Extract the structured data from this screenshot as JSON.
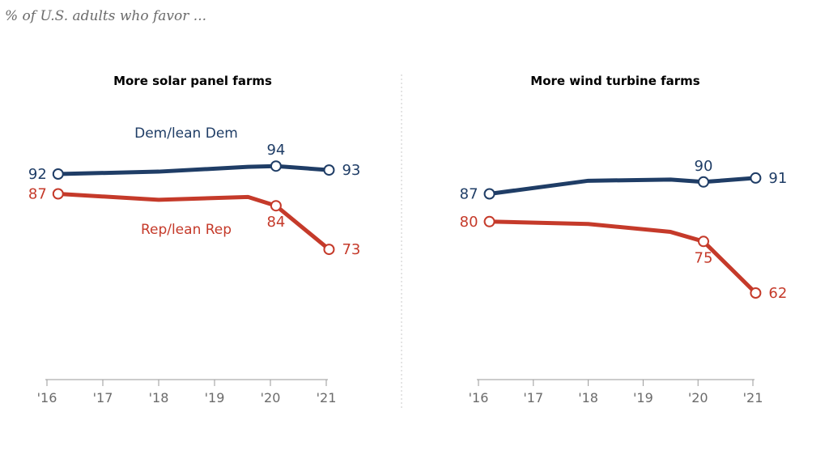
{
  "subtitle": "% of U.S. adults who favor ...",
  "colors": {
    "dem": "#1f3d66",
    "rep": "#c53a2a",
    "axis": "#9a9a9a",
    "divider": "#c8c8c8"
  },
  "chart_data": [
    {
      "type": "line",
      "title": "More solar panel farms",
      "x_ticks": [
        "'16",
        "'17",
        "'18",
        "'19",
        "'20",
        "'21"
      ],
      "xlim": [
        2016,
        2021
      ],
      "ylim": [
        0,
        100
      ],
      "series": [
        {
          "name": "Dem/lean Dem",
          "key": "dem",
          "x": [
            2016.2,
            2018,
            2019.6,
            2020.1,
            2021.05
          ],
          "values": [
            92,
            92.6,
            93.8,
            94,
            93
          ],
          "labeled": [
            0,
            3,
            4
          ],
          "labels": [
            "92",
            "94",
            "93"
          ],
          "label_pos": [
            "left",
            "above",
            "right"
          ]
        },
        {
          "name": "Rep/lean Rep",
          "key": "rep",
          "x": [
            2016.2,
            2018,
            2019.6,
            2020.1,
            2021.05
          ],
          "values": [
            87,
            85.5,
            86.2,
            84,
            73
          ],
          "labeled": [
            0,
            3,
            4
          ],
          "labels": [
            "87",
            "84",
            "73"
          ],
          "label_pos": [
            "left",
            "below",
            "right"
          ]
        }
      ]
    },
    {
      "type": "line",
      "title": "More wind turbine farms",
      "x_ticks": [
        "'16",
        "'17",
        "'18",
        "'19",
        "'20",
        "'21"
      ],
      "xlim": [
        2016,
        2021
      ],
      "ylim": [
        0,
        100
      ],
      "series": [
        {
          "name": "Dem/lean Dem",
          "key": "dem",
          "x": [
            2016.2,
            2018,
            2019.5,
            2020.1,
            2021.05
          ],
          "values": [
            87,
            90.3,
            90.6,
            90,
            91
          ],
          "labeled": [
            0,
            3,
            4
          ],
          "labels": [
            "87",
            "90",
            "91"
          ],
          "label_pos": [
            "left",
            "above",
            "right"
          ]
        },
        {
          "name": "Rep/lean Rep",
          "key": "rep",
          "x": [
            2016.2,
            2018,
            2019.5,
            2020.1,
            2021.05
          ],
          "values": [
            80,
            79.4,
            77.4,
            75,
            62
          ],
          "labeled": [
            0,
            3,
            4
          ],
          "labels": [
            "80",
            "75",
            "62"
          ],
          "label_pos": [
            "left",
            "below",
            "right"
          ]
        }
      ]
    }
  ]
}
